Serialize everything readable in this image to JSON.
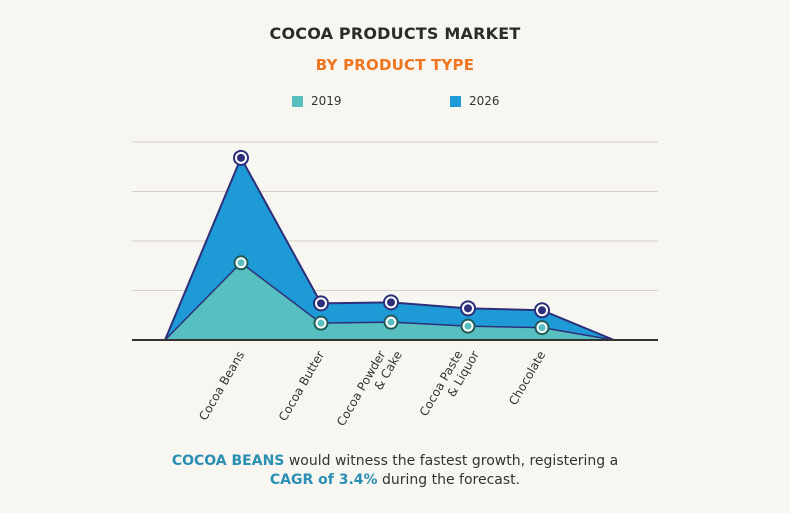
{
  "colors": {
    "series_2019": "#57bfc0",
    "series_2026": "#1e9bd7",
    "outline": "#2d2f7a",
    "subtitle": "#f07521",
    "highlight": "#2a8fb5",
    "axis": "#333333",
    "grid": "#d5d0ca"
  },
  "footer": {
    "highlight1": "COCOA BEANS",
    "text1": " would witness the fastest growth, registering a",
    "highlight2": "CAGR of 3.4%",
    "text2": " during the forecast."
  },
  "chart_data": {
    "type": "area",
    "title": "COCOA PRODUCTS MARKET",
    "subtitle": "BY PRODUCT TYPE",
    "categories": [
      "Cocoa Beans",
      "Cocoa Butter",
      "Cocoa Powder & Cake",
      "Cocoa Paste & Liquor",
      "Chocolate"
    ],
    "series": [
      {
        "name": "2019",
        "values": [
          78,
          17,
          18,
          14,
          12.5
        ]
      },
      {
        "name": "2026",
        "values": [
          184,
          37,
          38,
          32,
          30
        ]
      }
    ],
    "ylim": [
      0,
      200
    ],
    "grid": true,
    "legend": "top-center",
    "stacked": false
  }
}
